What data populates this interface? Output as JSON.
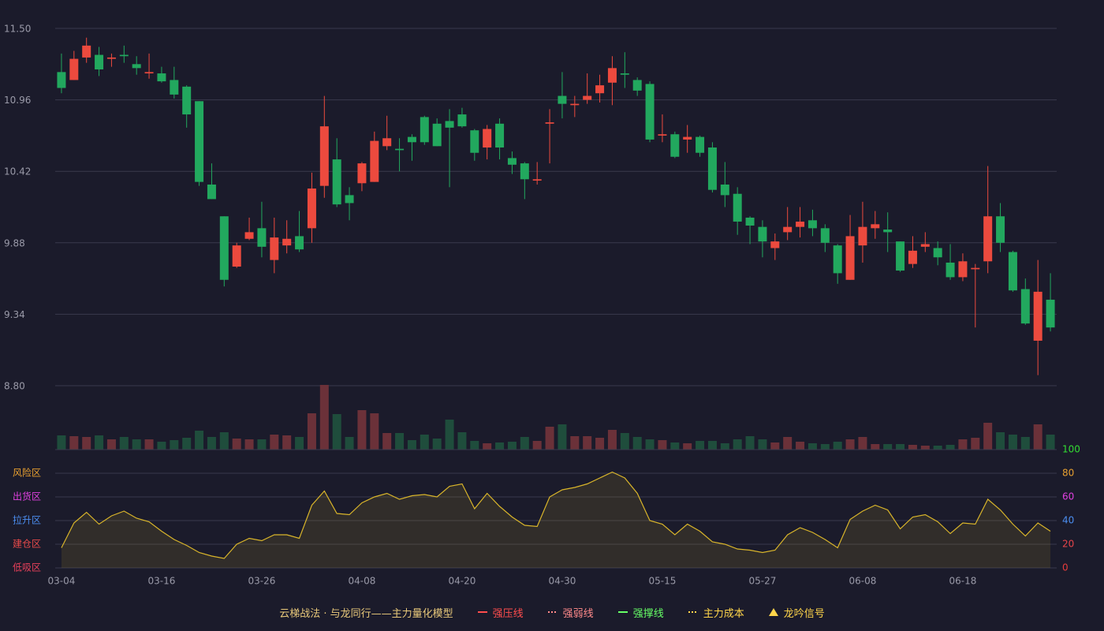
{
  "chart_data": [
    {
      "type": "candlestick",
      "categories": [
        "03-04",
        null,
        null,
        null,
        null,
        null,
        null,
        null,
        "03-16",
        null,
        null,
        null,
        null,
        null,
        null,
        null,
        "03-26",
        null,
        null,
        null,
        null,
        null,
        null,
        null,
        "04-08",
        null,
        null,
        null,
        null,
        null,
        null,
        null,
        "04-20",
        null,
        null,
        null,
        null,
        null,
        null,
        null,
        "04-30",
        null,
        null,
        null,
        null,
        null,
        null,
        null,
        "05-15",
        null,
        null,
        null,
        null,
        null,
        null,
        null,
        "05-27",
        null,
        null,
        null,
        null,
        null,
        null,
        null,
        "06-08",
        null,
        null,
        null,
        null,
        null,
        null,
        null,
        "06-18",
        null,
        null,
        null,
        null,
        null,
        null,
        null
      ],
      "open": [
        11.17,
        11.11,
        11.28,
        11.3,
        11.27,
        11.3,
        11.23,
        11.16,
        11.16,
        11.11,
        11.06,
        10.95,
        10.32,
        10.08,
        9.7,
        9.91,
        9.99,
        9.75,
        9.86,
        9.93,
        9.99,
        10.31,
        10.51,
        10.24,
        10.33,
        10.34,
        10.61,
        10.59,
        10.68,
        10.83,
        10.78,
        10.8,
        10.85,
        10.73,
        10.6,
        10.78,
        10.52,
        10.48,
        10.35,
        10.78,
        10.99,
        10.92,
        10.96,
        11.01,
        11.09,
        11.16,
        11.11,
        11.08,
        10.69,
        10.7,
        10.66,
        10.68,
        10.6,
        10.32,
        10.25,
        10.07,
        10.0,
        9.84,
        9.96,
        10.0,
        10.05,
        9.99,
        9.86,
        9.6,
        9.86,
        9.99,
        9.98,
        9.89,
        9.72,
        9.85,
        9.84,
        9.73,
        9.62,
        9.68,
        9.74,
        10.08,
        9.81,
        9.53,
        9.14,
        9.45
      ],
      "high": [
        11.31,
        11.33,
        11.43,
        11.36,
        11.31,
        11.37,
        11.29,
        11.31,
        11.21,
        11.21,
        11.07,
        10.95,
        10.48,
        10.08,
        9.88,
        10.07,
        10.19,
        10.07,
        10.05,
        10.12,
        10.41,
        10.99,
        10.67,
        10.3,
        10.49,
        10.72,
        10.84,
        10.67,
        10.7,
        10.84,
        10.82,
        10.89,
        10.9,
        10.74,
        10.77,
        10.82,
        10.57,
        10.49,
        10.49,
        10.89,
        11.17,
        10.99,
        11.16,
        11.15,
        11.29,
        11.32,
        11.13,
        11.1,
        10.85,
        10.72,
        10.77,
        10.69,
        10.64,
        10.49,
        10.3,
        10.08,
        10.05,
        9.95,
        10.15,
        10.15,
        10.13,
        10.02,
        9.87,
        10.09,
        10.19,
        10.12,
        10.11,
        9.89,
        9.93,
        9.96,
        9.89,
        9.87,
        9.8,
        9.72,
        10.46,
        10.18,
        9.82,
        9.61,
        9.75,
        9.65
      ],
      "low": [
        11.01,
        11.11,
        11.24,
        11.14,
        11.21,
        11.24,
        11.15,
        11.12,
        11.09,
        10.97,
        10.75,
        10.31,
        10.21,
        9.55,
        9.69,
        9.9,
        9.77,
        9.65,
        9.8,
        9.81,
        9.88,
        10.22,
        10.15,
        10.05,
        10.27,
        10.34,
        10.58,
        10.42,
        10.5,
        10.62,
        10.61,
        10.3,
        10.75,
        10.5,
        10.51,
        10.51,
        10.4,
        10.21,
        10.32,
        10.48,
        10.82,
        10.83,
        10.93,
        10.94,
        10.92,
        11.05,
        10.99,
        10.64,
        10.64,
        10.52,
        10.56,
        10.53,
        10.26,
        10.15,
        9.94,
        9.87,
        9.77,
        9.75,
        9.9,
        9.92,
        9.93,
        9.81,
        9.57,
        9.6,
        9.73,
        9.91,
        9.81,
        9.66,
        9.69,
        9.81,
        9.71,
        9.6,
        9.59,
        9.24,
        9.65,
        9.81,
        9.51,
        9.26,
        8.88,
        9.21
      ],
      "close": [
        11.05,
        11.27,
        11.37,
        11.19,
        11.28,
        11.29,
        11.2,
        11.17,
        11.1,
        11.0,
        10.85,
        10.34,
        10.21,
        9.6,
        9.86,
        9.96,
        9.85,
        9.92,
        9.91,
        9.83,
        10.29,
        10.76,
        10.17,
        10.18,
        10.48,
        10.65,
        10.67,
        10.58,
        10.64,
        10.64,
        10.61,
        10.75,
        10.76,
        10.56,
        10.74,
        10.6,
        10.47,
        10.36,
        10.36,
        10.79,
        10.93,
        10.93,
        10.99,
        11.07,
        11.2,
        11.15,
        11.03,
        10.66,
        10.7,
        10.53,
        10.68,
        10.56,
        10.28,
        10.24,
        10.04,
        10.01,
        9.89,
        9.89,
        10.0,
        10.04,
        9.99,
        9.88,
        9.65,
        9.93,
        10.0,
        10.02,
        9.96,
        9.67,
        9.82,
        9.87,
        9.77,
        9.62,
        9.74,
        9.69,
        10.08,
        9.88,
        9.52,
        9.27,
        9.51,
        9.24
      ],
      "up_color": "#ec4a3e",
      "down_color": "#22a85e",
      "ylim": [
        8.8,
        11.5
      ],
      "yticks": [
        {
          "value": 8.8,
          "label": "8.80"
        },
        9.34,
        9.88,
        10.42,
        10.96,
        {
          "value": 11.5,
          "label": "11.50"
        }
      ],
      "grid": true
    },
    {
      "type": "bar",
      "values": [
        18,
        17,
        16,
        18,
        13,
        16,
        13,
        13,
        10,
        12,
        15,
        24,
        16,
        22,
        14,
        13,
        13,
        19,
        18,
        16,
        46,
        82,
        45,
        16,
        50,
        46,
        21,
        21,
        12,
        19,
        14,
        38,
        22,
        11,
        8,
        9,
        10,
        16,
        11,
        29,
        32,
        17,
        17,
        15,
        25,
        21,
        16,
        13,
        12,
        9,
        8,
        11,
        11,
        8,
        13,
        17,
        13,
        9,
        16,
        10,
        8,
        7,
        10,
        13,
        16,
        7,
        7,
        7,
        6,
        5,
        5,
        6,
        13,
        15,
        34,
        22,
        19,
        16,
        32,
        19
      ],
      "up_color": "#6b3139",
      "down_color": "#1f4d3c"
    },
    {
      "type": "area",
      "values": [
        17,
        38,
        47,
        37,
        44,
        48,
        42,
        39,
        31,
        24,
        19,
        13,
        10,
        8,
        20,
        25,
        23,
        28,
        28,
        25,
        53,
        65,
        46,
        45,
        55,
        60,
        63,
        58,
        61,
        62,
        60,
        69,
        71,
        50,
        63,
        52,
        43,
        36,
        35,
        60,
        66,
        68,
        71,
        76,
        81,
        76,
        63,
        40,
        37,
        28,
        37,
        31,
        22,
        20,
        16,
        15,
        13,
        15,
        28,
        34,
        30,
        24,
        17,
        41,
        48,
        53,
        49,
        33,
        43,
        45,
        39,
        29,
        38,
        37,
        58,
        49,
        37,
        27,
        38,
        31
      ],
      "color": "#d9b52a",
      "ylim": [
        0,
        100
      ],
      "yticks": [
        0,
        20,
        40,
        60,
        80,
        100
      ],
      "ytick_colors": [
        "#e83c3c",
        "#e8454a",
        "#4b8ef0",
        "#e040e0",
        "#e8a030",
        "#33dd33"
      ],
      "zones": [
        {
          "label": "低吸区",
          "value": 0,
          "color": "#e8405a"
        },
        {
          "label": "建仓区",
          "value": 20,
          "color": "#e84a4a"
        },
        {
          "label": "拉升区",
          "value": 40,
          "color": "#4b8ef0"
        },
        {
          "label": "出货区",
          "value": 60,
          "color": "#e040e0"
        },
        {
          "label": "风险区",
          "value": 80,
          "color": "#e8a030"
        }
      ],
      "grid": true
    }
  ],
  "legend": {
    "title": "云梯战法 · 与龙同行——主力量化模型",
    "title_color": "#e8c87a",
    "items": [
      {
        "name": "强压线",
        "color": "#ff4d4d",
        "style": "solid"
      },
      {
        "name": "强弱线",
        "color": "#ff8a8a",
        "style": "dashed"
      },
      {
        "name": "强撑线",
        "color": "#66ff66",
        "style": "solid"
      },
      {
        "name": "主力成本",
        "color": "#ffd54a",
        "style": "dashed"
      },
      {
        "name": "龙吟信号",
        "color": "#ffd54a",
        "style": "triangle"
      }
    ]
  }
}
